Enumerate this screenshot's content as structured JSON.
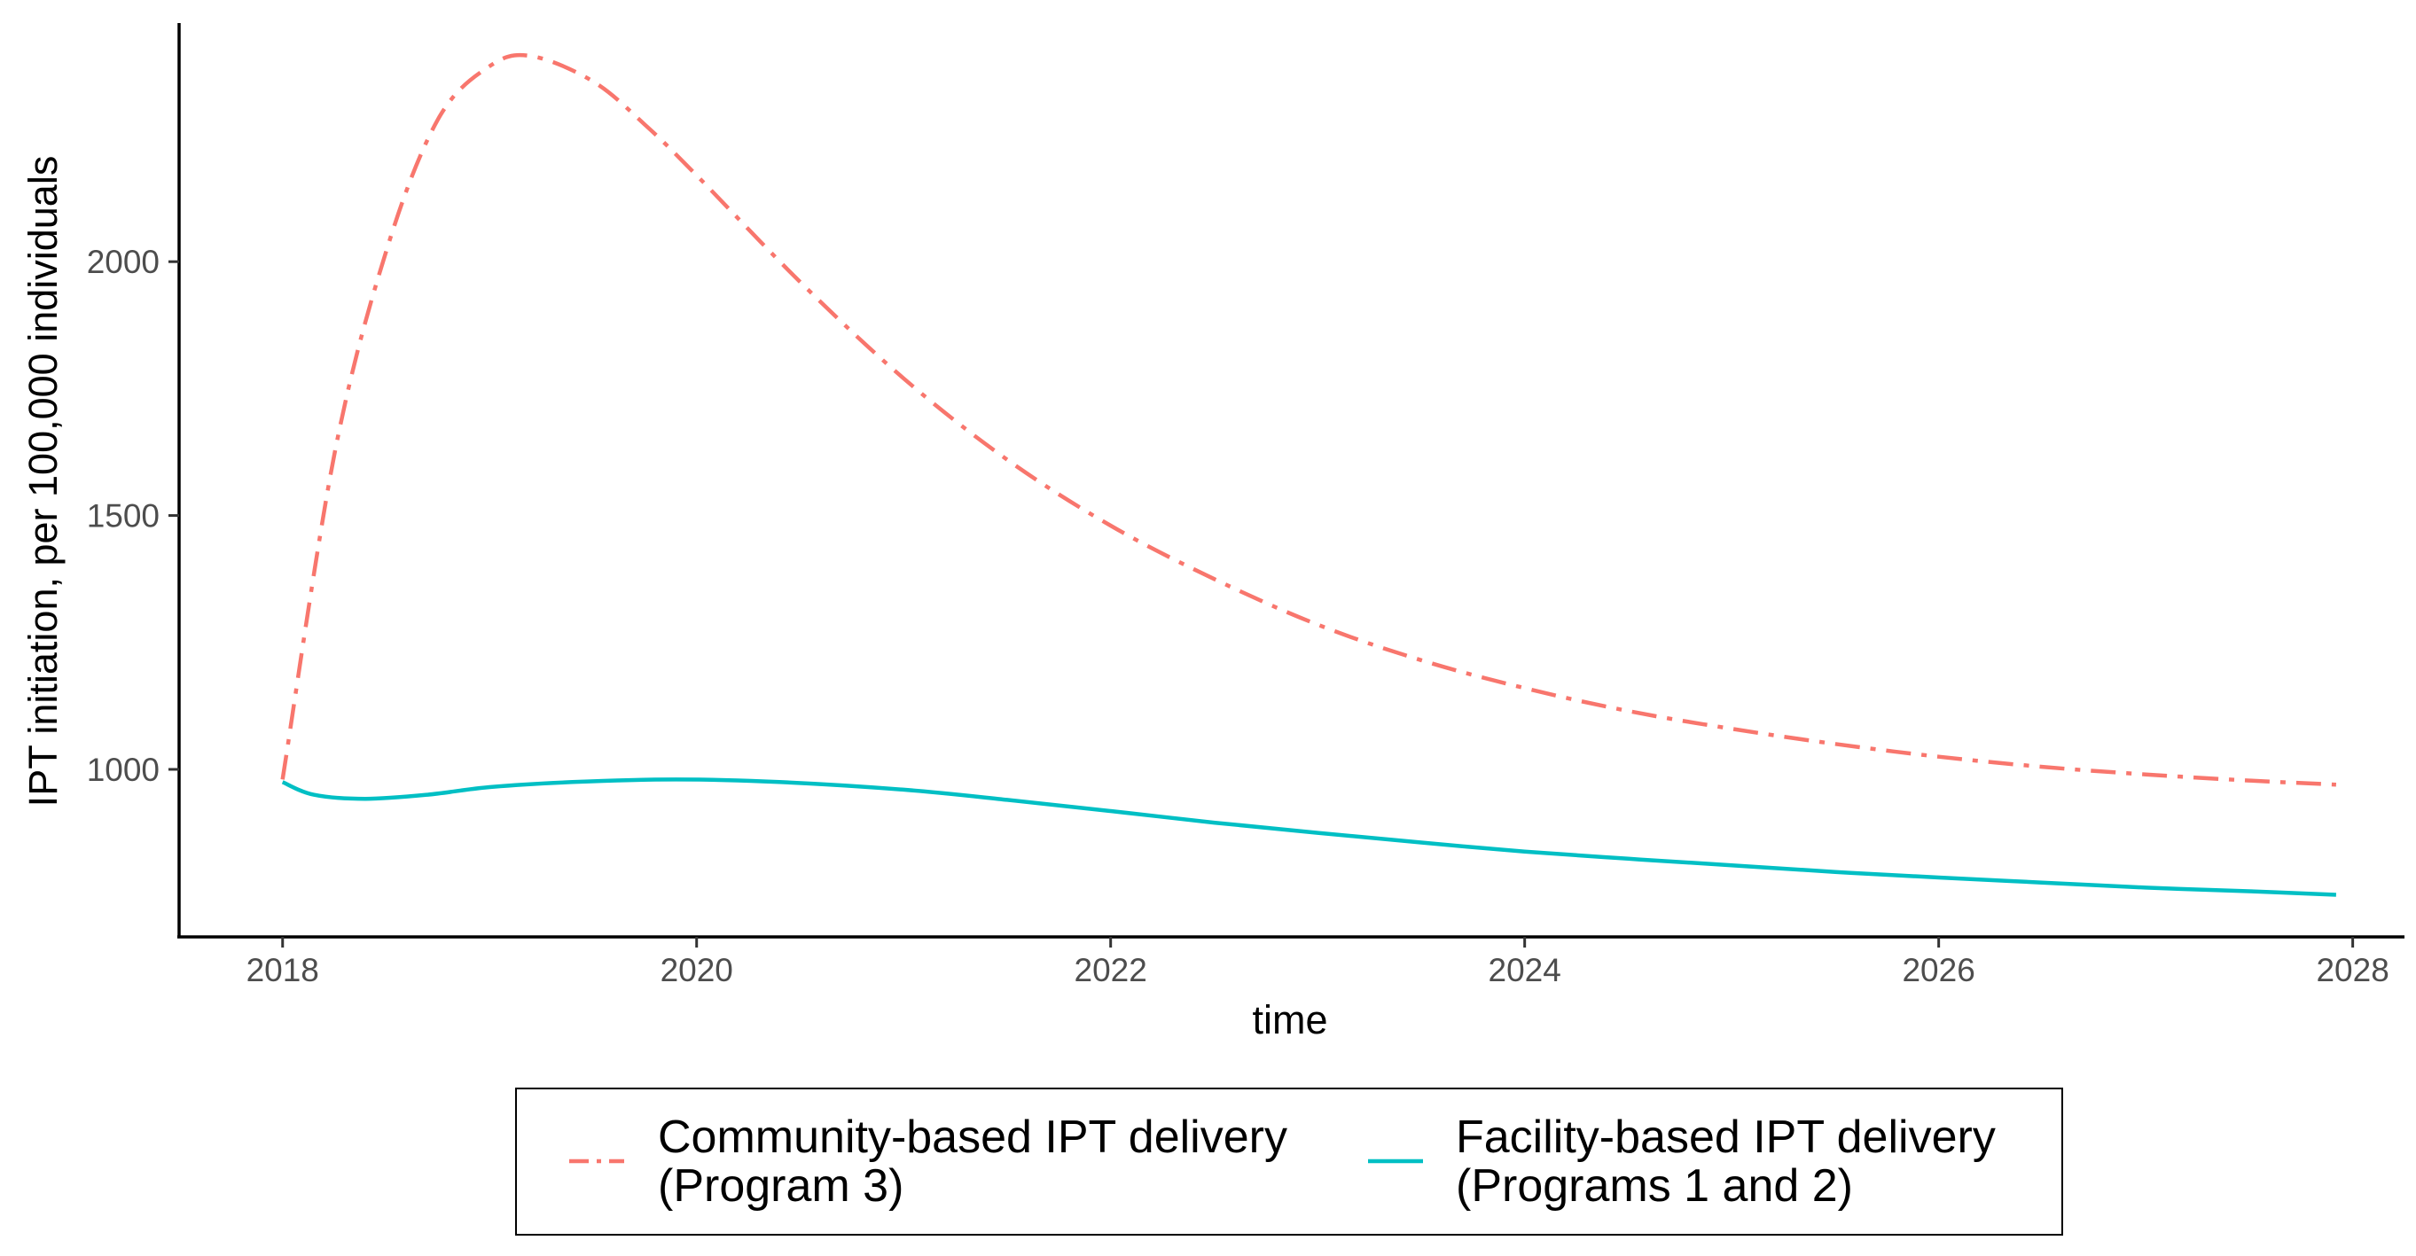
{
  "chart_data": {
    "type": "line",
    "title": "",
    "xlabel": "time",
    "ylabel": "IPT initiation, per 100,000 individuals",
    "xlim": [
      2017.5,
      2028.25
    ],
    "ylim": [
      670,
      2470
    ],
    "x_ticks": [
      2018,
      2020,
      2022,
      2024,
      2026,
      2028
    ],
    "x_tick_labels": [
      "2018",
      "2020",
      "2022",
      "2024",
      "2026",
      "2028"
    ],
    "y_ticks": [
      1000,
      1500,
      2000
    ],
    "y_tick_labels": [
      "1000",
      "1500",
      "2000"
    ],
    "grid": false,
    "legend": {
      "position": "bottom",
      "items": [
        {
          "series": 0,
          "lines": [
            "Community-based IPT delivery",
            "(Program 3)"
          ]
        },
        {
          "series": 1,
          "lines": [
            "Facility-based IPT delivery",
            "(Programs 1 and 2)"
          ]
        }
      ]
    },
    "series": [
      {
        "name": "Community-based IPT delivery (Program 3)",
        "color": "#F8766D",
        "line_style": "dashdot",
        "x": [
          2018.0,
          2018.25,
          2018.5,
          2018.75,
          2019.0,
          2019.2,
          2019.5,
          2019.75,
          2020.0,
          2020.5,
          2021.0,
          2021.5,
          2022.0,
          2022.5,
          2023.0,
          2023.5,
          2024.0,
          2024.5,
          2025.0,
          2025.5,
          2026.0,
          2026.5,
          2027.0,
          2027.5,
          2027.92
        ],
        "y": [
          980,
          1620,
          2020,
          2280,
          2385,
          2405,
          2355,
          2270,
          2170,
          1960,
          1770,
          1610,
          1480,
          1375,
          1285,
          1215,
          1160,
          1115,
          1080,
          1050,
          1025,
          1005,
          990,
          978,
          970
        ]
      },
      {
        "name": "Facility-based IPT delivery (Programs 1 and 2)",
        "color": "#00BFC4",
        "line_style": "solid",
        "x": [
          2018.0,
          2018.15,
          2018.4,
          2018.7,
          2019.0,
          2019.4,
          2019.9,
          2020.4,
          2021.0,
          2021.5,
          2022.0,
          2022.5,
          2023.0,
          2023.5,
          2024.0,
          2024.5,
          2025.0,
          2025.5,
          2026.0,
          2026.5,
          2027.0,
          2027.5,
          2027.92
        ],
        "y": [
          975,
          950,
          942,
          950,
          965,
          975,
          980,
          975,
          960,
          940,
          918,
          895,
          875,
          856,
          838,
          824,
          811,
          798,
          787,
          777,
          767,
          760,
          753
        ]
      }
    ]
  }
}
